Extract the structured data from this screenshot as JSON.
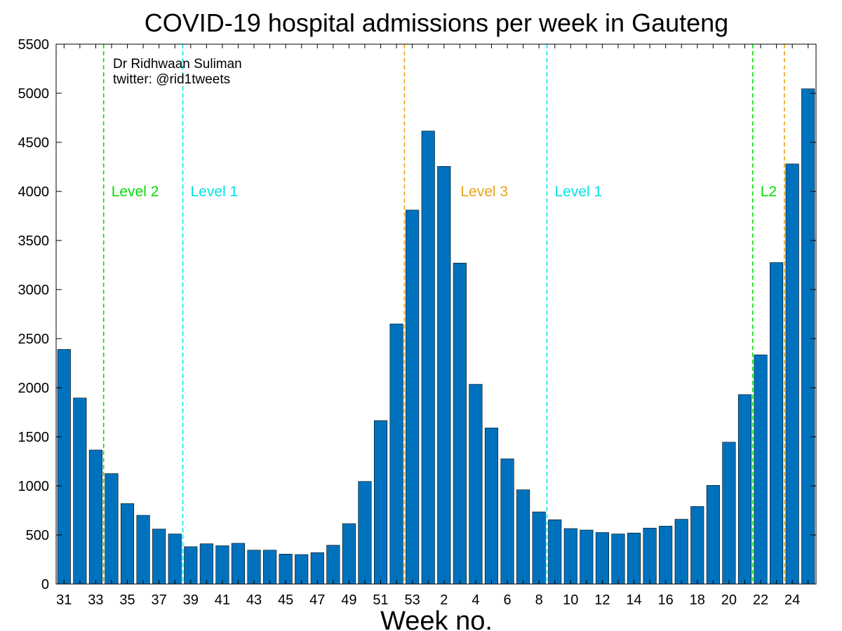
{
  "chart_data": {
    "type": "bar",
    "title": "COVID-19 hospital admissions per week in Gauteng",
    "xlabel": "Week no.",
    "ylabel": "",
    "ylim": [
      0,
      5500
    ],
    "y_ticks": [
      0,
      500,
      1000,
      1500,
      2000,
      2500,
      3000,
      3500,
      4000,
      4500,
      5000,
      5500
    ],
    "grid": false,
    "bar_color": "#0072bd",
    "categories": [
      "31",
      "32",
      "33",
      "34",
      "35",
      "36",
      "37",
      "38",
      "39",
      "40",
      "41",
      "42",
      "43",
      "44",
      "45",
      "46",
      "47",
      "48",
      "49",
      "50",
      "51",
      "52",
      "53",
      "1",
      "2",
      "3",
      "4",
      "5",
      "6",
      "7",
      "8",
      "9",
      "10",
      "11",
      "12",
      "13",
      "14",
      "15",
      "16",
      "17",
      "18",
      "19",
      "20",
      "21",
      "22",
      "23",
      "24",
      "25"
    ],
    "x_tick_labels": [
      "31",
      "33",
      "35",
      "37",
      "39",
      "41",
      "43",
      "45",
      "47",
      "49",
      "51",
      "53",
      "2",
      "4",
      "6",
      "8",
      "10",
      "12",
      "14",
      "16",
      "18",
      "20",
      "22",
      "24"
    ],
    "values": [
      2390,
      1895,
      1365,
      1125,
      820,
      700,
      560,
      510,
      380,
      410,
      390,
      415,
      345,
      345,
      305,
      300,
      320,
      395,
      615,
      1045,
      1665,
      2650,
      3810,
      4615,
      4255,
      3270,
      2035,
      1590,
      1275,
      960,
      735,
      655,
      565,
      550,
      525,
      510,
      520,
      570,
      590,
      660,
      790,
      1005,
      1445,
      1930,
      2335,
      3275,
      4280,
      5045
    ],
    "credit": [
      "Dr Ridhwaan Suliman",
      "twitter: @rid1tweets"
    ],
    "phases": [
      {
        "label": "Level 2",
        "color": "#00dd00",
        "boundary": "between weeks 33 and 34"
      },
      {
        "label": "Level 1",
        "color": "#00e5e5",
        "boundary": "between weeks 38 and 39"
      },
      {
        "label": "Level 3",
        "color": "#e8a317",
        "boundary": "between weeks 52 and 53"
      },
      {
        "label": "Level 1",
        "color": "#00e5e5",
        "boundary": "between weeks 8 and 9"
      },
      {
        "label": "L2",
        "color": "#00dd00",
        "boundary": "between weeks 21 and 22"
      },
      {
        "label": "",
        "color": "#e8a317",
        "boundary": "between weeks 23 and 24"
      }
    ]
  }
}
